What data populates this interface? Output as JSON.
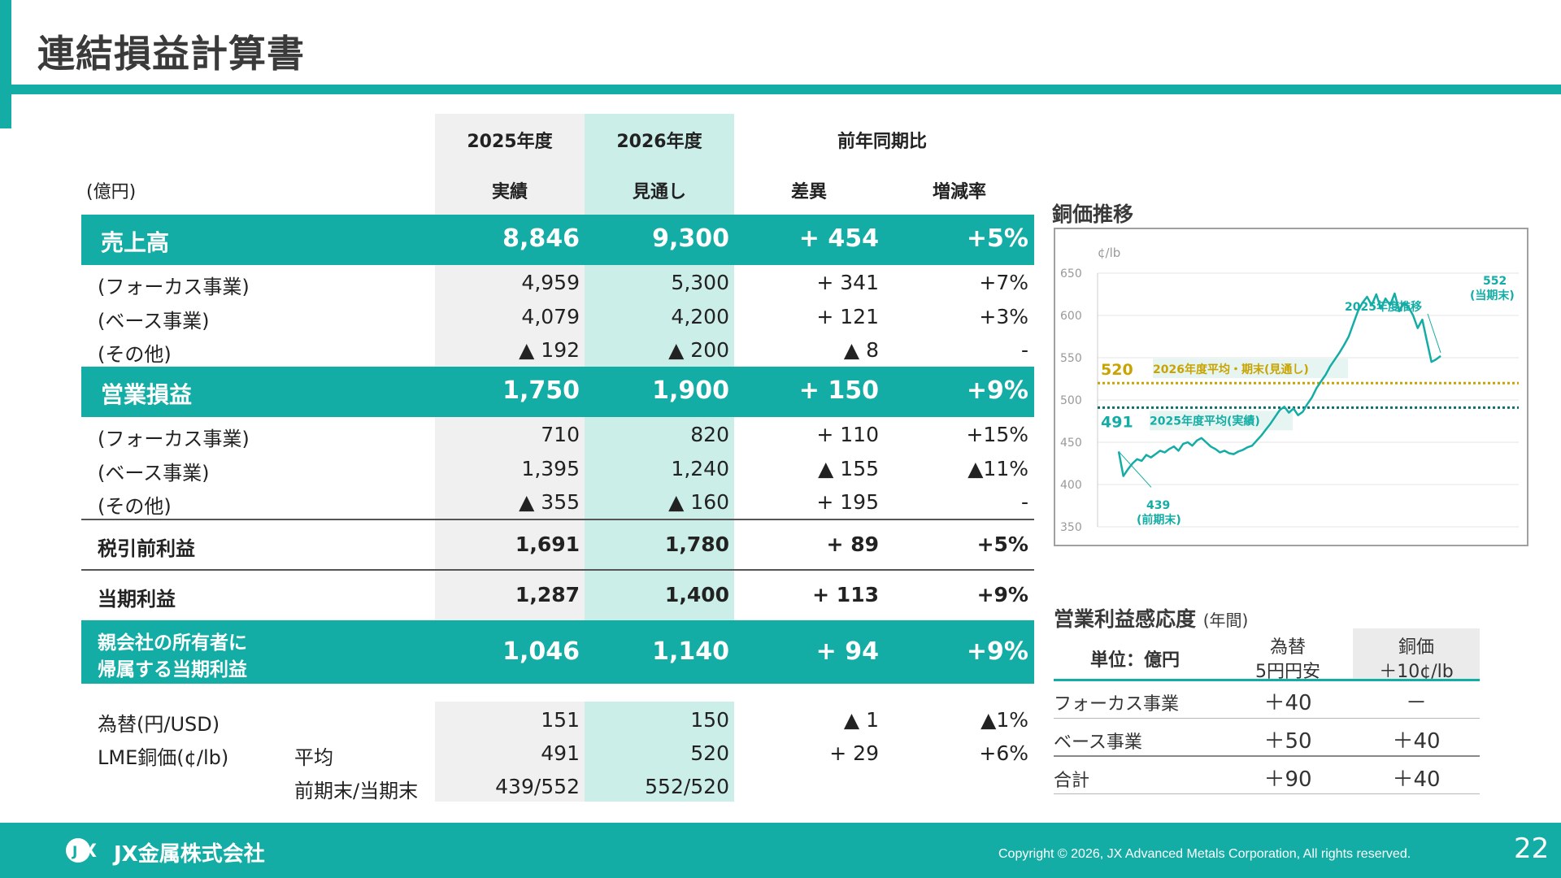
{
  "page": {
    "title": "連結損益計算書",
    "page_number": "22"
  },
  "table": {
    "unit": "(億円)",
    "header": {
      "y2025": "2025年度",
      "y2026": "2026年度",
      "yoy": "前年同期比",
      "actual": "実績",
      "forecast": "見通し",
      "diff": "差異",
      "rate": "増減率"
    },
    "revenue": {
      "label": "売上高",
      "v25": "8,846",
      "v26": "9,300",
      "diff": "+ 454",
      "rate": "+5%"
    },
    "revenue_rows": [
      {
        "label": "(フォーカス事業)",
        "v25": "4,959",
        "v26": "5,300",
        "diff": "+ 341",
        "rate": "+7%"
      },
      {
        "label": "(ベース事業)",
        "v25": "4,079",
        "v26": "4,200",
        "diff": "+ 121",
        "rate": "+3%"
      },
      {
        "label": "(その他)",
        "v25": "▲ 192",
        "v26": "▲ 200",
        "diff": "▲ 8",
        "rate": "-"
      }
    ],
    "op": {
      "label": "営業損益",
      "v25": "1,750",
      "v26": "1,900",
      "diff": "+ 150",
      "rate": "+9%"
    },
    "op_rows": [
      {
        "label": "(フォーカス事業)",
        "v25": "710",
        "v26": "820",
        "diff": "+ 110",
        "rate": "+15%"
      },
      {
        "label": "(ベース事業)",
        "v25": "1,395",
        "v26": "1,240",
        "diff": "▲ 155",
        "rate": "▲11%"
      },
      {
        "label": "(その他)",
        "v25": "▲ 355",
        "v26": "▲ 160",
        "diff": "+ 195",
        "rate": "-"
      }
    ],
    "pretax": {
      "label": "税引前利益",
      "v25": "1,691",
      "v26": "1,780",
      "diff": "+ 89",
      "rate": "+5%"
    },
    "net": {
      "label": "当期利益",
      "v25": "1,287",
      "v26": "1,400",
      "diff": "+ 113",
      "rate": "+9%"
    },
    "parent": {
      "label1": "親会社の所有者に",
      "label2": "帰属する当期利益",
      "v25": "1,046",
      "v26": "1,140",
      "diff": "+ 94",
      "rate": "+9%"
    },
    "fx": {
      "label": "為替(円/USD)",
      "v25": "151",
      "v26": "150",
      "diff": "▲ 1",
      "rate": "▲1%"
    },
    "lme": {
      "label": "LME銅価(¢/lb)",
      "sub1": "平均",
      "v25": "491",
      "v26": "520",
      "diff": "+ 29",
      "rate": "+6%",
      "sub2": "前期末/当期末",
      "v25b": "439/552",
      "v26b": "552/520"
    }
  },
  "chart_data": {
    "type": "line",
    "title": "銅価推移",
    "unit": "¢/lb",
    "ylim": [
      350,
      650
    ],
    "yticks": [
      350,
      400,
      450,
      500,
      550,
      600,
      650
    ],
    "series": [
      {
        "name": "2025年度推移",
        "values": [
          439,
          410,
          418,
          425,
          430,
          428,
          435,
          432,
          436,
          440,
          438,
          442,
          445,
          440,
          448,
          450,
          446,
          452,
          455,
          450,
          445,
          442,
          438,
          440,
          437,
          436,
          439,
          441,
          444,
          446,
          452,
          458,
          465,
          472,
          480,
          488,
          492,
          485,
          490,
          482,
          486,
          495,
          503,
          514,
          522,
          530,
          540,
          548,
          556,
          565,
          575,
          590,
          605,
          615,
          622,
          612,
          625,
          608,
          620,
          612,
          626,
          605,
          615,
          610,
          600,
          585,
          595,
          570,
          545,
          548,
          552
        ]
      }
    ],
    "reference_lines": [
      {
        "label": "2026年度平均・期末(見通し)",
        "value": 520,
        "color": "#c9a400"
      },
      {
        "label": "2025年度平均(実績)",
        "value": 491,
        "color": "#0e6f6a"
      }
    ],
    "annotations": [
      {
        "text": "439",
        "sub": "(前期末)"
      },
      {
        "text": "552",
        "sub": "(当期末)"
      },
      {
        "text": "2025年度推移"
      },
      {
        "text": "520"
      },
      {
        "text": "491"
      }
    ],
    "colors": {
      "line": "#14ada5"
    }
  },
  "sensitivity": {
    "title": "営業利益感応度",
    "title_sub": "(年間)",
    "unit_label": "単位：億円",
    "col1_line1": "為替",
    "col1_line2": "5円円安",
    "col2_line1": "銅価",
    "col2_line2": "＋10¢/lb",
    "rows": [
      {
        "label": "フォーカス事業",
        "fx": "＋40",
        "cu": "－"
      },
      {
        "label": "ベース事業",
        "fx": "＋50",
        "cu": "＋40"
      },
      {
        "label": "合計",
        "fx": "＋90",
        "cu": "＋40"
      }
    ]
  },
  "footer": {
    "logo_text": "JX金属株式会社",
    "copyright": "Copyright © 2026, JX Advanced Metals Corporation, All rights reserved."
  },
  "colors": {
    "accent": "#14ada5",
    "forecast_bg": "#cbeee9",
    "actual_bg": "#f0f0f0"
  }
}
